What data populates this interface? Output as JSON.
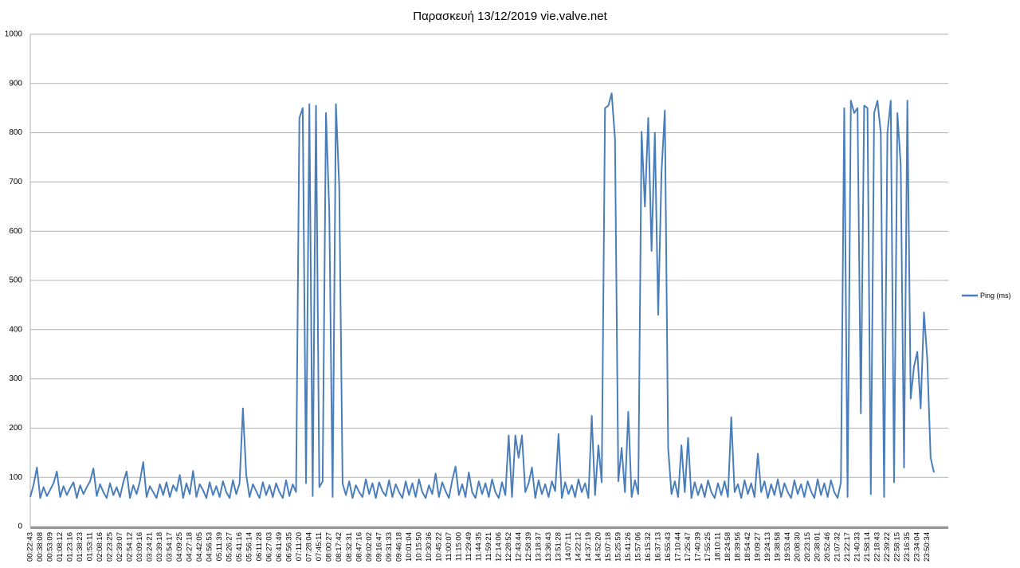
{
  "chart_data": {
    "type": "line",
    "title": "Παρασκευή 13/12/2019 vie.valve.net",
    "categories": [
      "00:22:43",
      null,
      null,
      "00:38:08",
      null,
      null,
      "00:53:09",
      null,
      null,
      "01:08:12",
      null,
      null,
      "01:23:16",
      null,
      null,
      "01:38:23",
      null,
      null,
      "01:53:11",
      null,
      null,
      "02:08:16",
      null,
      null,
      "02:23:25",
      null,
      null,
      "02:39:07",
      null,
      null,
      "02:54:12",
      null,
      null,
      "03:09:16",
      null,
      null,
      "03:24:21",
      null,
      null,
      "03:39:18",
      null,
      null,
      "03:54:17",
      null,
      null,
      "04:09:25",
      null,
      null,
      "04:27:18",
      null,
      null,
      "04:42:05",
      null,
      null,
      "04:56:53",
      null,
      null,
      "05:11:39",
      null,
      null,
      "05:26:27",
      null,
      null,
      "05:41:16",
      null,
      null,
      "05:56:14",
      null,
      null,
      "06:11:28",
      null,
      null,
      "06:27:03",
      null,
      null,
      "06:41:49",
      null,
      null,
      "06:56:35",
      null,
      null,
      "07:11:20",
      null,
      null,
      "07:28:04",
      null,
      null,
      "07:45:11",
      null,
      null,
      "08:00:27",
      null,
      null,
      "08:17:42",
      null,
      null,
      "08:32:31",
      null,
      null,
      "08:47:16",
      null,
      null,
      "09:02:02",
      null,
      null,
      "09:16:47",
      null,
      null,
      "09:31:33",
      null,
      null,
      "09:46:18",
      null,
      null,
      "10:01:04",
      null,
      null,
      "10:15:50",
      null,
      null,
      "10:30:36",
      null,
      null,
      "10:45:22",
      null,
      null,
      "11:00:07",
      null,
      null,
      "11:15:00",
      null,
      null,
      "11:29:49",
      null,
      null,
      "11:44:35",
      null,
      null,
      "11:59:21",
      null,
      null,
      "12:14:06",
      null,
      null,
      "12:28:52",
      null,
      null,
      "12:43:44",
      null,
      null,
      "12:58:39",
      null,
      null,
      "13:18:37",
      null,
      null,
      "13:36:43",
      null,
      null,
      "13:51:28",
      null,
      null,
      "14:07:11",
      null,
      null,
      "14:22:12",
      null,
      null,
      "14:37:19",
      null,
      null,
      "14:52:20",
      null,
      null,
      "15:07:18",
      null,
      null,
      "15:25:59",
      null,
      null,
      "15:41:26",
      null,
      null,
      "15:57:06",
      null,
      null,
      "16:15:32",
      null,
      null,
      "16:37:13",
      null,
      null,
      "16:55:43",
      null,
      null,
      "17:10:44",
      null,
      null,
      "17:25:47",
      null,
      null,
      "17:40:39",
      null,
      null,
      "17:55:25",
      null,
      null,
      "18:10:11",
      null,
      null,
      "18:24:58",
      null,
      null,
      "18:39:56",
      null,
      null,
      "18:54:42",
      null,
      null,
      "19:09:27",
      null,
      null,
      "19:24:13",
      null,
      null,
      "19:38:58",
      null,
      null,
      "19:53:44",
      null,
      null,
      "20:08:30",
      null,
      null,
      "20:23:15",
      null,
      null,
      "20:38:01",
      null,
      null,
      "20:52:46",
      null,
      null,
      "21:07:32",
      null,
      null,
      "21:22:17",
      null,
      null,
      "21:40:33",
      null,
      null,
      "21:58:14",
      null,
      null,
      "22:18:43",
      null,
      null,
      "22:39:22",
      null,
      null,
      "22:58:15",
      null,
      null,
      "23:16:35",
      null,
      null,
      "23:34:04",
      null,
      null,
      "23:50:34",
      null,
      null
    ],
    "series": [
      {
        "name": "Ping (ms)",
        "color": "#4a7ebb",
        "values": [
          60,
          85,
          120,
          58,
          80,
          62,
          75,
          88,
          112,
          60,
          82,
          64,
          78,
          90,
          58,
          84,
          66,
          80,
          92,
          118,
          62,
          86,
          70,
          58,
          88,
          64,
          80,
          60,
          90,
          112,
          58,
          84,
          66,
          92,
          131,
          60,
          82,
          70,
          58,
          86,
          64,
          90,
          60,
          84,
          72,
          105,
          58,
          88,
          66,
          113,
          60,
          86,
          74,
          58,
          90,
          64,
          82,
          60,
          92,
          70,
          58,
          94,
          66,
          88,
          240,
          105,
          60,
          86,
          72,
          58,
          90,
          64,
          84,
          60,
          88,
          70,
          58,
          94,
          62,
          86,
          70,
          830,
          850,
          88,
          858,
          62,
          855,
          80,
          92,
          840,
          640,
          60,
          858,
          690,
          88,
          64,
          92,
          58,
          84,
          70,
          60,
          96,
          66,
          88,
          58,
          90,
          72,
          62,
          94,
          60,
          86,
          70,
          58,
          92,
          64,
          88,
          60,
          96,
          70,
          58,
          84,
          66,
          108,
          60,
          90,
          72,
          58,
          94,
          122,
          64,
          86,
          60,
          110,
          70,
          58,
          92,
          66,
          88,
          60,
          96,
          70,
          58,
          90,
          64,
          185,
          60,
          185,
          140,
          185,
          70,
          88,
          120,
          58,
          94,
          66,
          86,
          60,
          92,
          72,
          188,
          58,
          90,
          66,
          84,
          60,
          96,
          70,
          88,
          58,
          225,
          64,
          165,
          90,
          850,
          855,
          880,
          787,
          92,
          160,
          70,
          233,
          60,
          94,
          66,
          802,
          650,
          830,
          560,
          800,
          430,
          720,
          845,
          160,
          66,
          92,
          60,
          165,
          70,
          180,
          58,
          90,
          64,
          86,
          60,
          94,
          70,
          58,
          88,
          64,
          92,
          60,
          222,
          70,
          86,
          58,
          94,
          66,
          88,
          60,
          148,
          70,
          92,
          58,
          86,
          64,
          96,
          60,
          88,
          70,
          58,
          94,
          66,
          86,
          60,
          92,
          72,
          58,
          96,
          64,
          88,
          60,
          94,
          70,
          58,
          90,
          850,
          60,
          865,
          840,
          850,
          230,
          855,
          850,
          66,
          840,
          865,
          800,
          60,
          800,
          865,
          90,
          840,
          735,
          120,
          865,
          260,
          325,
          355,
          240,
          435,
          340,
          140,
          110
        ]
      }
    ],
    "ylim": [
      0,
      1000
    ],
    "yticks": [
      0,
      100,
      200,
      300,
      400,
      500,
      600,
      700,
      800,
      900,
      1000
    ],
    "grid": true,
    "legend": "right"
  }
}
